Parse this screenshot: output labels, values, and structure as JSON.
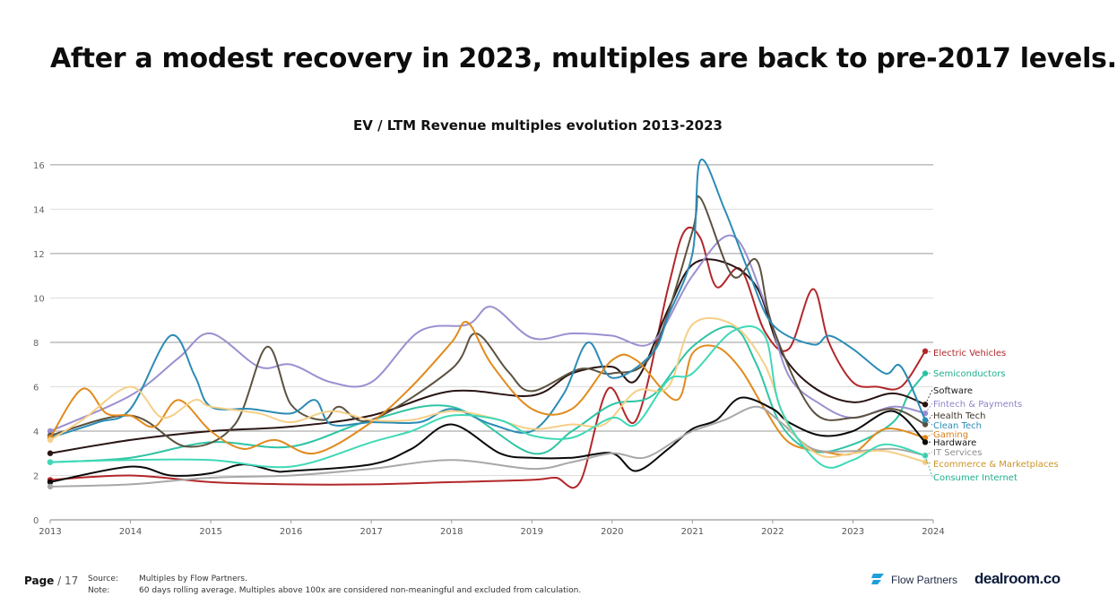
{
  "slide_title": "After a modest recovery in 2023, multiples are back to pre-2017 levels.",
  "footer": {
    "page_label": "Page",
    "page_number": "/ 17",
    "source_key": "Source:",
    "source_value": "Multiples by Flow Partners.",
    "note_key": "Note:",
    "note_value": "60 days rolling average. Multiples above 100x are considered non-meaningful and excluded from calculation.",
    "logo_flow_partners": "Flow Partners",
    "logo_dealroom": "dealroom.co"
  },
  "chart_data": {
    "type": "line",
    "title": "EV  / LTM Revenue multiples evolution 2013-2023",
    "xlabel": "",
    "ylabel": "",
    "xlim": [
      2013,
      2024
    ],
    "ylim": [
      0,
      16.5
    ],
    "x_ticks": [
      "2013",
      "2014",
      "2015",
      "2016",
      "2017",
      "2018",
      "2019",
      "2020",
      "2021",
      "2022",
      "2023",
      "2024"
    ],
    "y_ticks": [
      "0",
      "2",
      "4",
      "6",
      "8",
      "10",
      "12",
      "14",
      "16"
    ],
    "grid": "horizontal",
    "legend": "end-of-line labels",
    "series": [
      {
        "name": "Electric Vehicles",
        "color": "#b2272a",
        "points": [
          [
            2013,
            1.8
          ],
          [
            2014,
            2.0
          ],
          [
            2015,
            1.7
          ],
          [
            2016,
            1.6
          ],
          [
            2017,
            1.6
          ],
          [
            2018,
            1.7
          ],
          [
            2019,
            1.8
          ],
          [
            2019.3,
            1.9
          ],
          [
            2019.6,
            1.7
          ],
          [
            2019.95,
            5.9
          ],
          [
            2020.3,
            4.5
          ],
          [
            2020.7,
            10.5
          ],
          [
            2020.9,
            13.0
          ],
          [
            2021.1,
            12.7
          ],
          [
            2021.3,
            10.5
          ],
          [
            2021.6,
            11.3
          ],
          [
            2021.9,
            8.5
          ],
          [
            2022.2,
            7.7
          ],
          [
            2022.5,
            10.4
          ],
          [
            2022.7,
            8.0
          ],
          [
            2023.0,
            6.2
          ],
          [
            2023.3,
            6.0
          ],
          [
            2023.6,
            6.0
          ],
          [
            2023.9,
            7.6
          ]
        ]
      },
      {
        "name": "Semiconductors",
        "color": "#2ec4a4",
        "points": [
          [
            2013,
            2.6
          ],
          [
            2014,
            2.8
          ],
          [
            2015,
            3.5
          ],
          [
            2016,
            3.3
          ],
          [
            2017,
            4.5
          ],
          [
            2018,
            5.1
          ],
          [
            2019,
            3.0
          ],
          [
            2019.5,
            4.0
          ],
          [
            2020,
            5.2
          ],
          [
            2020.5,
            5.6
          ],
          [
            2021,
            7.8
          ],
          [
            2021.5,
            8.7
          ],
          [
            2021.8,
            7.0
          ],
          [
            2022.1,
            4.3
          ],
          [
            2022.5,
            3.1
          ],
          [
            2023,
            3.4
          ],
          [
            2023.5,
            4.4
          ],
          [
            2023.7,
            5.7
          ],
          [
            2023.9,
            6.6
          ]
        ]
      },
      {
        "name": "Software",
        "color": "#2a1414",
        "points": [
          [
            2013,
            3.0
          ],
          [
            2014,
            3.6
          ],
          [
            2015,
            4.0
          ],
          [
            2016,
            4.2
          ],
          [
            2017,
            4.7
          ],
          [
            2018,
            5.8
          ],
          [
            2019,
            5.6
          ],
          [
            2019.5,
            6.6
          ],
          [
            2020,
            6.9
          ],
          [
            2020.3,
            6.3
          ],
          [
            2020.7,
            9.5
          ],
          [
            2021,
            11.5
          ],
          [
            2021.4,
            11.6
          ],
          [
            2021.8,
            10.5
          ],
          [
            2022.1,
            7.6
          ],
          [
            2022.5,
            6.0
          ],
          [
            2023,
            5.3
          ],
          [
            2023.5,
            5.7
          ],
          [
            2023.9,
            5.2
          ]
        ]
      },
      {
        "name": "Fintech & Payments",
        "color": "#9b8fd0",
        "points": [
          [
            2013,
            4.0
          ],
          [
            2014,
            5.6
          ],
          [
            2014.6,
            7.3
          ],
          [
            2015,
            8.4
          ],
          [
            2015.6,
            6.9
          ],
          [
            2016,
            7.0
          ],
          [
            2016.5,
            6.2
          ],
          [
            2017,
            6.2
          ],
          [
            2017.6,
            8.5
          ],
          [
            2018.2,
            8.8
          ],
          [
            2018.5,
            9.6
          ],
          [
            2019,
            8.2
          ],
          [
            2019.5,
            8.4
          ],
          [
            2020,
            8.3
          ],
          [
            2020.5,
            8.0
          ],
          [
            2021,
            11.0
          ],
          [
            2021.5,
            12.8
          ],
          [
            2021.9,
            9.8
          ],
          [
            2022.2,
            6.5
          ],
          [
            2022.6,
            5.2
          ],
          [
            2023,
            4.6
          ],
          [
            2023.5,
            5.1
          ],
          [
            2023.9,
            4.8
          ]
        ]
      },
      {
        "name": "Health Tech",
        "color": "#5c5240",
        "points": [
          [
            2013,
            3.8
          ],
          [
            2014,
            4.7
          ],
          [
            2014.7,
            3.3
          ],
          [
            2015.3,
            4.3
          ],
          [
            2015.7,
            7.8
          ],
          [
            2016,
            5.2
          ],
          [
            2016.4,
            4.5
          ],
          [
            2016.6,
            5.1
          ],
          [
            2017,
            4.5
          ],
          [
            2018,
            6.8
          ],
          [
            2018.3,
            8.4
          ],
          [
            2018.7,
            6.7
          ],
          [
            2019,
            5.8
          ],
          [
            2019.6,
            6.8
          ],
          [
            2020,
            6.6
          ],
          [
            2020.5,
            7.5
          ],
          [
            2021,
            13.0
          ],
          [
            2021.1,
            14.5
          ],
          [
            2021.5,
            11.0
          ],
          [
            2021.8,
            11.7
          ],
          [
            2022,
            8.7
          ],
          [
            2022.5,
            4.9
          ],
          [
            2023,
            4.6
          ],
          [
            2023.5,
            5.0
          ],
          [
            2023.9,
            4.3
          ]
        ]
      },
      {
        "name": "Clean Tech",
        "color": "#2b8cb5",
        "points": [
          [
            2013,
            3.7
          ],
          [
            2013.6,
            4.4
          ],
          [
            2014,
            5.0
          ],
          [
            2014.5,
            8.3
          ],
          [
            2014.8,
            6.5
          ],
          [
            2015,
            5.1
          ],
          [
            2015.5,
            5.0
          ],
          [
            2016,
            4.8
          ],
          [
            2016.3,
            5.4
          ],
          [
            2016.5,
            4.3
          ],
          [
            2017,
            4.4
          ],
          [
            2017.6,
            4.4
          ],
          [
            2018,
            5.0
          ],
          [
            2018.5,
            4.3
          ],
          [
            2019,
            4.0
          ],
          [
            2019.4,
            5.7
          ],
          [
            2019.7,
            8.0
          ],
          [
            2020,
            6.4
          ],
          [
            2020.5,
            7.5
          ],
          [
            2020.7,
            9.2
          ],
          [
            2021,
            12.0
          ],
          [
            2021.1,
            16.2
          ],
          [
            2021.4,
            14.0
          ],
          [
            2021.7,
            11.2
          ],
          [
            2022,
            8.8
          ],
          [
            2022.5,
            7.9
          ],
          [
            2022.7,
            8.3
          ],
          [
            2023,
            7.7
          ],
          [
            2023.4,
            6.6
          ],
          [
            2023.6,
            6.9
          ],
          [
            2023.9,
            4.5
          ]
        ]
      },
      {
        "name": "Gaming",
        "color": "#e18a1c",
        "points": [
          [
            2013,
            3.7
          ],
          [
            2013.4,
            5.9
          ],
          [
            2013.7,
            4.8
          ],
          [
            2014,
            4.7
          ],
          [
            2014.3,
            4.2
          ],
          [
            2014.6,
            5.4
          ],
          [
            2015,
            4.0
          ],
          [
            2015.4,
            3.2
          ],
          [
            2015.8,
            3.6
          ],
          [
            2016.3,
            3.0
          ],
          [
            2017,
            4.4
          ],
          [
            2017.5,
            6.0
          ],
          [
            2018,
            8.0
          ],
          [
            2018.2,
            8.9
          ],
          [
            2018.5,
            7.0
          ],
          [
            2019,
            5.0
          ],
          [
            2019.5,
            5.0
          ],
          [
            2020,
            7.2
          ],
          [
            2020.3,
            7.2
          ],
          [
            2020.8,
            5.4
          ],
          [
            2021,
            7.5
          ],
          [
            2021.3,
            7.8
          ],
          [
            2021.6,
            6.8
          ],
          [
            2021.9,
            5.0
          ],
          [
            2022.2,
            3.5
          ],
          [
            2022.6,
            3.1
          ],
          [
            2023,
            3.0
          ],
          [
            2023.4,
            4.1
          ],
          [
            2023.9,
            3.7
          ]
        ]
      },
      {
        "name": "Hardware",
        "color": "#0a0a0a",
        "points": [
          [
            2013,
            1.7
          ],
          [
            2014,
            2.4
          ],
          [
            2014.5,
            2.0
          ],
          [
            2015,
            2.1
          ],
          [
            2015.4,
            2.5
          ],
          [
            2015.8,
            2.2
          ],
          [
            2016,
            2.2
          ],
          [
            2017,
            2.5
          ],
          [
            2017.5,
            3.2
          ],
          [
            2018,
            4.3
          ],
          [
            2018.6,
            3.0
          ],
          [
            2019,
            2.8
          ],
          [
            2019.5,
            2.8
          ],
          [
            2020,
            3.0
          ],
          [
            2020.3,
            2.2
          ],
          [
            2020.7,
            3.2
          ],
          [
            2021,
            4.1
          ],
          [
            2021.3,
            4.5
          ],
          [
            2021.6,
            5.5
          ],
          [
            2022,
            5.0
          ],
          [
            2022.2,
            4.4
          ],
          [
            2022.6,
            3.8
          ],
          [
            2023,
            4.0
          ],
          [
            2023.5,
            4.9
          ],
          [
            2023.9,
            3.5
          ]
        ]
      },
      {
        "name": "IT Services",
        "color": "#a8a8a8",
        "points": [
          [
            2013,
            1.5
          ],
          [
            2014,
            1.6
          ],
          [
            2015,
            1.9
          ],
          [
            2016,
            2.0
          ],
          [
            2017,
            2.3
          ],
          [
            2018,
            2.7
          ],
          [
            2019,
            2.3
          ],
          [
            2019.5,
            2.6
          ],
          [
            2020,
            3.0
          ],
          [
            2020.4,
            2.8
          ],
          [
            2020.8,
            3.6
          ],
          [
            2021,
            4.0
          ],
          [
            2021.4,
            4.5
          ],
          [
            2021.8,
            5.1
          ],
          [
            2022.1,
            4.4
          ],
          [
            2022.5,
            3.2
          ],
          [
            2023,
            3.1
          ],
          [
            2023.5,
            3.2
          ],
          [
            2023.9,
            2.9
          ]
        ]
      },
      {
        "name": "Ecommerce & Marketplaces",
        "color": "#f5cf88",
        "points": [
          [
            2013,
            3.6
          ],
          [
            2013.4,
            4.5
          ],
          [
            2014,
            6.0
          ],
          [
            2014.4,
            4.6
          ],
          [
            2014.8,
            5.4
          ],
          [
            2015,
            5.1
          ],
          [
            2015.6,
            4.8
          ],
          [
            2016,
            4.4
          ],
          [
            2016.5,
            4.9
          ],
          [
            2017,
            4.5
          ],
          [
            2017.5,
            4.5
          ],
          [
            2018,
            4.9
          ],
          [
            2018.5,
            4.6
          ],
          [
            2019,
            4.1
          ],
          [
            2019.5,
            4.3
          ],
          [
            2019.9,
            4.3
          ],
          [
            2020.3,
            5.8
          ],
          [
            2020.7,
            6.0
          ],
          [
            2021,
            8.8
          ],
          [
            2021.5,
            8.8
          ],
          [
            2021.9,
            7.0
          ],
          [
            2022.2,
            4.2
          ],
          [
            2022.6,
            2.9
          ],
          [
            2023,
            3.0
          ],
          [
            2023.4,
            3.1
          ],
          [
            2023.9,
            2.6
          ]
        ]
      },
      {
        "name": "Consumer Internet",
        "color": "#3fd9b6",
        "points": [
          [
            2013,
            2.6
          ],
          [
            2014,
            2.7
          ],
          [
            2015,
            2.7
          ],
          [
            2016,
            2.4
          ],
          [
            2017,
            3.5
          ],
          [
            2017.5,
            4.0
          ],
          [
            2018,
            4.7
          ],
          [
            2018.6,
            4.5
          ],
          [
            2019,
            3.8
          ],
          [
            2019.5,
            3.7
          ],
          [
            2020,
            4.6
          ],
          [
            2020.3,
            4.3
          ],
          [
            2020.7,
            6.3
          ],
          [
            2021,
            6.6
          ],
          [
            2021.5,
            8.5
          ],
          [
            2021.9,
            8.3
          ],
          [
            2022.1,
            5.0
          ],
          [
            2022.6,
            2.5
          ],
          [
            2023,
            2.7
          ],
          [
            2023.4,
            3.4
          ],
          [
            2023.9,
            2.9
          ]
        ]
      }
    ],
    "end_labels": [
      {
        "name": "Electric Vehicles",
        "color": "#b2272a"
      },
      {
        "name": "Semiconductors",
        "color": "#1fae8e"
      },
      {
        "name": "Software",
        "color": "#1a1a1a"
      },
      {
        "name": "Fintech & Payments",
        "color": "#8f84c6"
      },
      {
        "name": "Health Tech",
        "color": "#3d3628"
      },
      {
        "name": "Clean Tech",
        "color": "#2b8cb5"
      },
      {
        "name": "Gaming",
        "color": "#d9801a"
      },
      {
        "name": "Hardware",
        "color": "#111111"
      },
      {
        "name": "IT Services",
        "color": "#8c8c8c"
      },
      {
        "name": "Ecommerce & Marketplaces",
        "color": "#c9952a"
      },
      {
        "name": "Consumer Internet",
        "color": "#1fae8e"
      }
    ]
  }
}
